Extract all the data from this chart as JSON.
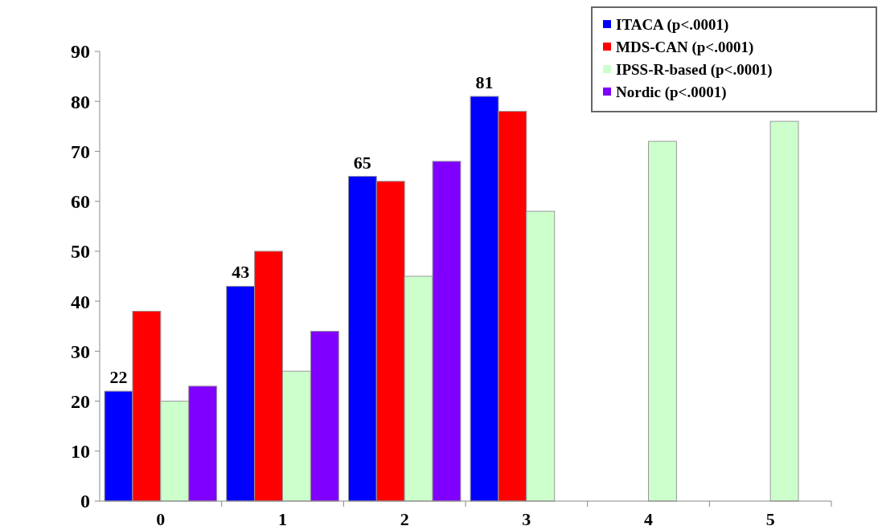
{
  "chart_data": {
    "type": "bar",
    "categories": [
      "0",
      "1",
      "2",
      "3",
      "4",
      "5"
    ],
    "series": [
      {
        "name": "ITACA (p<.0001)",
        "color": "#0000ff",
        "values": [
          22,
          43,
          65,
          81,
          null,
          null
        ],
        "value_labels": [
          "22",
          "43",
          "65",
          "81",
          null,
          null
        ]
      },
      {
        "name": "MDS-CAN (p<.0001)",
        "color": "#ff0000",
        "values": [
          38,
          50,
          64,
          78,
          null,
          null
        ]
      },
      {
        "name": "IPSS-R-based (p<.0001)",
        "color": "#ccffcc",
        "values": [
          20,
          26,
          45,
          58,
          72,
          76
        ]
      },
      {
        "name": "Nordic (p<.0001)",
        "color": "#8000ff",
        "values": [
          23,
          34,
          68,
          null,
          null,
          null
        ]
      }
    ],
    "ylim": [
      0,
      90
    ],
    "yticks": [
      0,
      10,
      20,
      30,
      40,
      50,
      60,
      70,
      80,
      90
    ],
    "grid": false,
    "legend": "top right"
  }
}
